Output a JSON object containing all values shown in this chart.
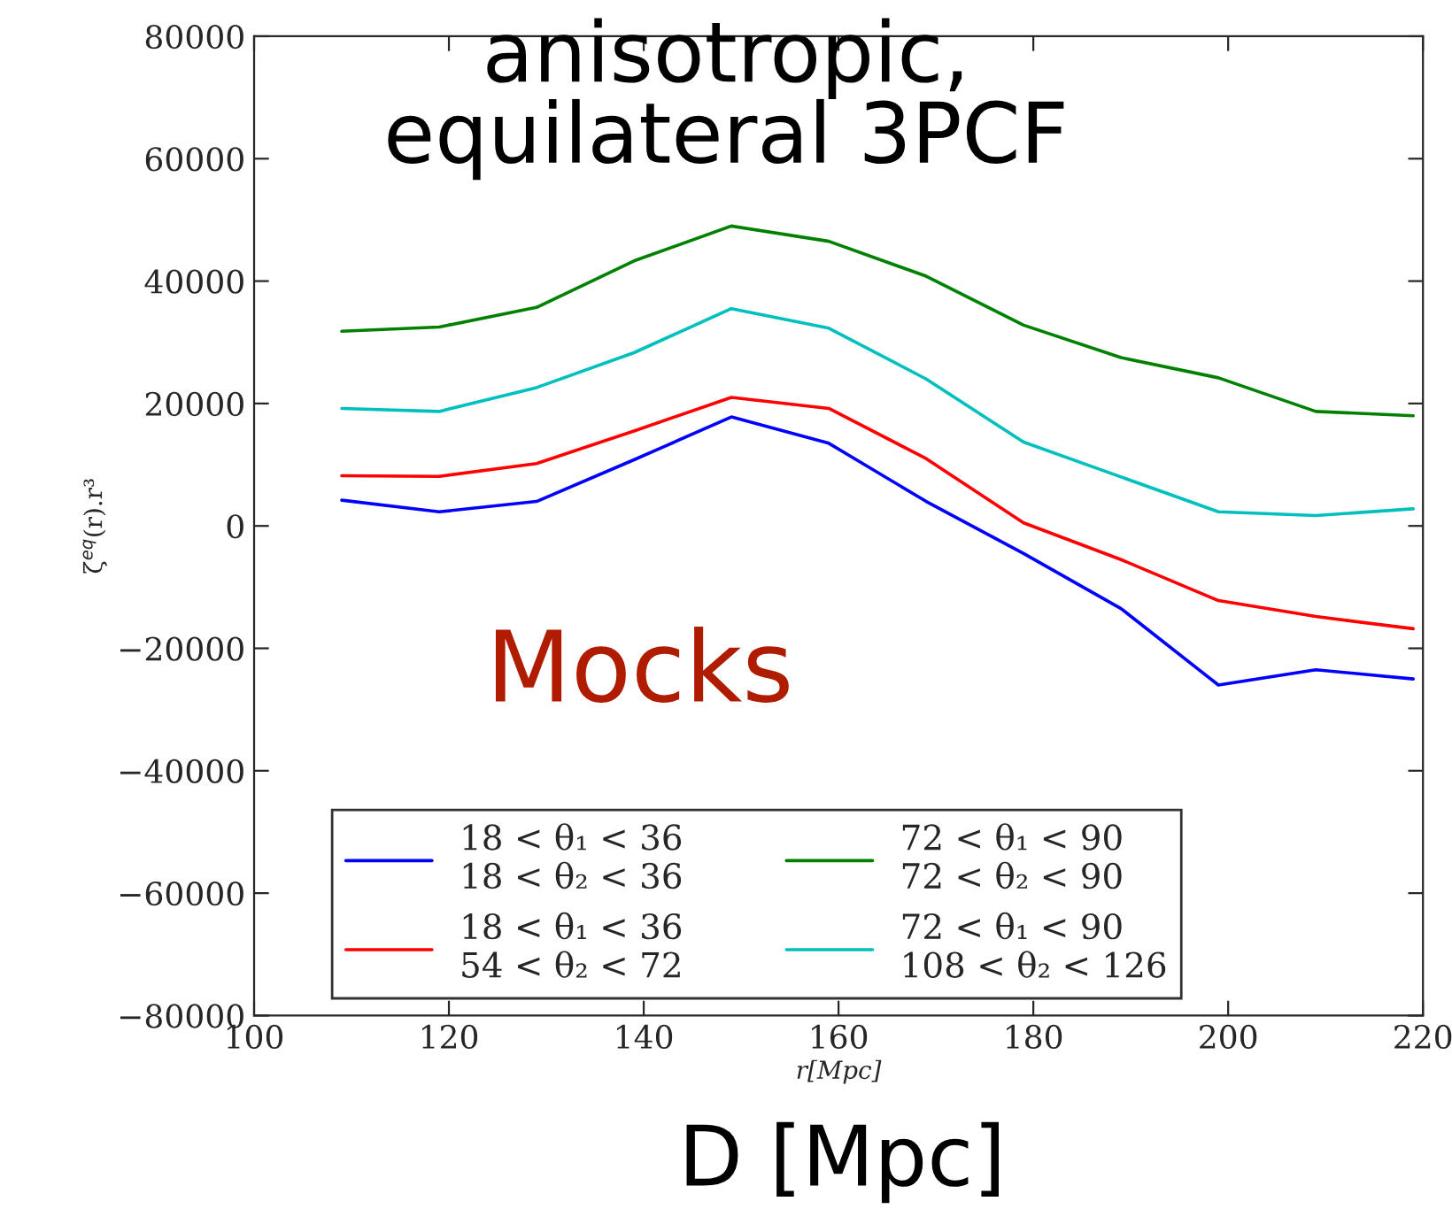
{
  "chart_data": {
    "type": "line",
    "xlabel": "r[Mpc]",
    "ylabel": "ζ$^{eq}$(r).r³",
    "annotations": [
      "anisotropic,\nequilateral 3PCF",
      "Mocks",
      "D [Mpc]"
    ],
    "x": [
      109,
      119,
      129,
      139,
      149,
      159,
      169,
      179,
      189,
      199,
      209,
      219
    ],
    "series": [
      {
        "name": "18 < θ₁ < 36\n18 < θ₂ < 36",
        "color": "#0000ff",
        "values": [
          4200,
          2300,
          4000,
          10800,
          17800,
          13500,
          4000,
          -4500,
          -13500,
          -26000,
          -23500,
          -25000
        ]
      },
      {
        "name": "18 < θ₁ < 36\n54 < θ₂ < 72",
        "color": "#ff0000",
        "values": [
          8200,
          8100,
          10200,
          15500,
          21000,
          19200,
          11000,
          500,
          -5500,
          -12200,
          -14800,
          -16800
        ]
      },
      {
        "name": "72 < θ₁ < 90\n72 < θ₂ < 90",
        "color": "#008000",
        "values": [
          31800,
          32500,
          35700,
          43300,
          49000,
          46500,
          40800,
          32800,
          27500,
          24200,
          18700,
          18000
        ]
      },
      {
        "name": "72 < θ₁ < 90\n108 < θ₂ < 126",
        "color": "#00bfbf",
        "values": [
          19200,
          18700,
          22600,
          28300,
          35500,
          32300,
          24000,
          13700,
          8000,
          2300,
          1700,
          2800
        ]
      }
    ],
    "xlim": [
      100,
      220
    ],
    "xticks": [
      100,
      120,
      140,
      160,
      180,
      200,
      220
    ],
    "ylim": [
      -80000,
      80000
    ],
    "yticks": [
      {
        "value": -80000,
        "label": "−80000"
      },
      {
        "value": -60000,
        "label": "−60000"
      },
      {
        "value": -40000,
        "label": "−40000"
      },
      {
        "value": -20000,
        "label": "−20000"
      },
      0,
      20000,
      40000,
      60000,
      80000
    ],
    "grid": false,
    "legend": "bottom",
    "marker": "none",
    "line_style": "solid"
  }
}
